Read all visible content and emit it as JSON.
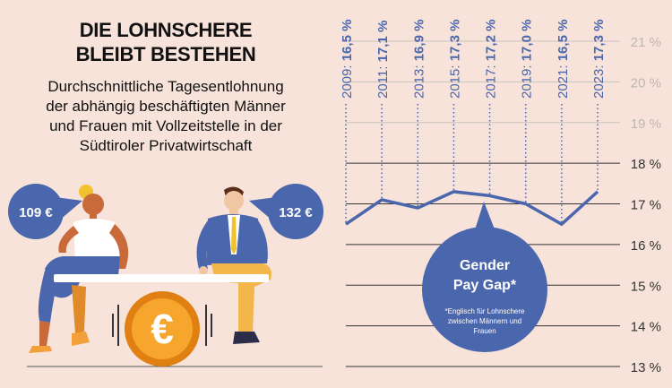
{
  "infographic": {
    "title_line1": "DIE LOHNSCHERE",
    "title_line2": "BLEIBT BESTEHEN",
    "subtitle_lines": [
      "Durchschnittliche Tagesentlohnung",
      "der abhängig beschäftigten Männer",
      "und Frauen mit Vollzeitstelle in der",
      "Südtiroler Privatwirtschaft"
    ],
    "women_wage": "109 €",
    "men_wage": "132 €",
    "coin_symbol": "€",
    "bubble_line1": "Gender",
    "bubble_line2": "Pay Gap*",
    "footnote_lines": [
      "*Englisch für Lohnschere",
      "zwischen Männern und",
      "Frauen"
    ]
  },
  "colors": {
    "background": "#f7e3da",
    "accent_blue": "#4a66ad",
    "coin": "#f29a1e",
    "grid": "#333333"
  },
  "chart_data": {
    "type": "line",
    "x": [
      2009,
      2011,
      2013,
      2015,
      2017,
      2019,
      2021,
      2023
    ],
    "values": [
      16.5,
      17.1,
      16.9,
      17.3,
      17.2,
      17.0,
      16.5,
      17.3
    ],
    "point_labels": [
      "2009: 16,5 %",
      "2011: 17,1 %",
      "2013: 16,9 %",
      "2015: 17,3 %",
      "2017: 17,2 %",
      "2019: 17,0 %",
      "2021: 16,5 %",
      "2023: 17,3 %"
    ],
    "ytick_values": [
      13,
      14,
      15,
      16,
      17,
      18,
      19,
      20,
      21
    ],
    "ytick_labels": [
      "13 %",
      "14 %",
      "15 %",
      "16 %",
      "17 %",
      "18 %",
      "19 %",
      "20 %",
      "21 %"
    ],
    "ylim": [
      13,
      21
    ],
    "y_axis_position": "right",
    "grid": true
  }
}
